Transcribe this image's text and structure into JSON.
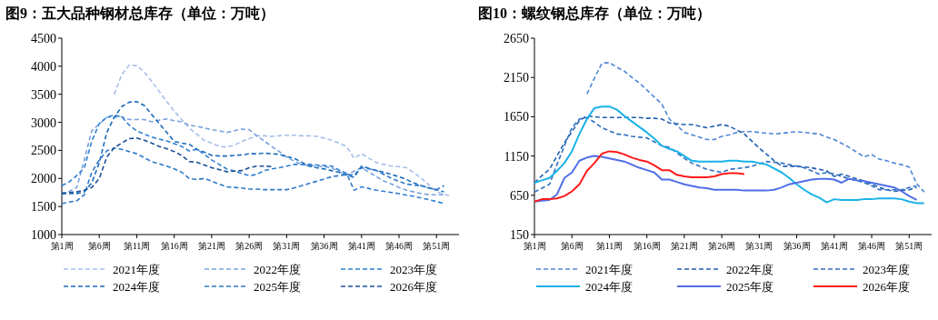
{
  "chart_data": [
    {
      "type": "line",
      "title": "图9：五大品种钢材总库存（单位：万吨）",
      "categories": [
        "第1周",
        null,
        null,
        null,
        null,
        "第6周",
        null,
        null,
        null,
        null,
        "第11周",
        null,
        null,
        null,
        null,
        "第16周",
        null,
        null,
        null,
        null,
        "第21周",
        null,
        null,
        null,
        null,
        "第26周",
        null,
        null,
        null,
        null,
        "第31周",
        null,
        null,
        null,
        null,
        "第36周",
        null,
        null,
        null,
        null,
        "第41周",
        null,
        null,
        null,
        null,
        "第46周",
        null,
        null,
        null,
        null,
        "第51周",
        null,
        null
      ],
      "ylim": [
        1000,
        4500
      ],
      "yticks": [
        1000,
        1500,
        2000,
        2500,
        3000,
        3500,
        4000,
        4500
      ],
      "legend": "bottom",
      "marker": "none",
      "series": [
        {
          "name": "2021年度",
          "color": "#a6bfe9",
          "line_style": "dashed",
          "values": [
            null,
            null,
            null,
            null,
            null,
            null,
            null,
            3500,
            3850,
            4020,
            4010,
            3900,
            3730,
            3550,
            3370,
            3200,
            3050,
            2900,
            2790,
            2680,
            2630,
            2570,
            2560,
            2590,
            2660,
            2710,
            2760,
            2760,
            2750,
            2760,
            2770,
            2770,
            2760,
            2760,
            2750,
            2720,
            2680,
            2630,
            2570,
            2360,
            2440,
            2360,
            2280,
            2250,
            2220,
            2210,
            2190,
            2100,
            2000,
            1880,
            1760,
            1720,
            1680
          ]
        },
        {
          "name": "2022年度",
          "color": "#7ba2de",
          "line_style": "dashed",
          "values": [
            1710,
            1770,
            1840,
            2330,
            2850,
            2970,
            3090,
            3090,
            3100,
            3050,
            3050,
            3050,
            3010,
            3040,
            3060,
            3030,
            3010,
            2950,
            2930,
            2900,
            2870,
            2850,
            2820,
            2850,
            2880,
            2870,
            2760,
            2670,
            2570,
            2480,
            2380,
            2310,
            2250,
            2230,
            2220,
            2210,
            2190,
            2120,
            2060,
            2130,
            2190,
            2110,
            2030,
            1950,
            1900,
            1840,
            1790,
            1760,
            1730,
            1710,
            1710,
            1710,
            null
          ]
        },
        {
          "name": "2023年度",
          "color": "#2f7fd0",
          "line_style": "dashed",
          "values": [
            1870,
            1940,
            2050,
            2190,
            2660,
            2980,
            3090,
            3130,
            3100,
            2950,
            2850,
            2790,
            2740,
            2700,
            2670,
            2620,
            2570,
            2490,
            2520,
            2430,
            2330,
            2250,
            2170,
            2130,
            2090,
            2050,
            2070,
            2140,
            2170,
            2190,
            2220,
            2250,
            2250,
            2250,
            2240,
            2230,
            2220,
            2150,
            2090,
            1790,
            1850,
            1820,
            1790,
            1770,
            1750,
            1730,
            1700,
            1680,
            1650,
            1620,
            1590,
            1550,
            null
          ]
        },
        {
          "name": "2024年度",
          "color": "#1a6bbb",
          "line_style": "dashed",
          "values": [
            1730,
            1730,
            1730,
            1760,
            1920,
            2280,
            2820,
            3090,
            3280,
            3360,
            3370,
            3300,
            3140,
            2980,
            2820,
            2660,
            2630,
            2610,
            2520,
            2470,
            2410,
            2400,
            2400,
            2410,
            2420,
            2440,
            2440,
            2450,
            2440,
            2430,
            2390,
            2360,
            2290,
            2220,
            2190,
            2170,
            2140,
            2110,
            2060,
            2020,
            2220,
            2180,
            2140,
            2110,
            2070,
            2030,
            1980,
            1920,
            1870,
            1830,
            1800,
            1760,
            null
          ]
        },
        {
          "name": "2025年度",
          "color": "#2c78c8",
          "line_style": "dashed",
          "values": [
            1550,
            1580,
            1600,
            1710,
            2110,
            2330,
            2490,
            2540,
            2520,
            2480,
            2440,
            2370,
            2300,
            2260,
            2220,
            2170,
            2110,
            2000,
            1980,
            2000,
            1950,
            1900,
            1850,
            1840,
            1830,
            1810,
            1810,
            1800,
            1800,
            1800,
            1800,
            1830,
            1870,
            1910,
            1950,
            1990,
            2030,
            2050,
            2070,
            2060,
            2190,
            2170,
            2140,
            2070,
            2000,
            1950,
            1900,
            1880,
            1870,
            1830,
            1800,
            1870,
            null
          ]
        },
        {
          "name": "2026年度",
          "color": "#1b4f96",
          "line_style": "dashed",
          "values": [
            1740,
            1750,
            1760,
            1790,
            1840,
            2000,
            2380,
            2550,
            2630,
            2710,
            2720,
            2680,
            2630,
            2570,
            2530,
            2480,
            2410,
            2300,
            2290,
            2240,
            2190,
            2160,
            2120,
            2130,
            2140,
            2190,
            2220,
            2220,
            2210,
            null,
            null,
            null,
            null,
            null,
            null,
            null,
            null,
            null,
            null,
            null,
            null,
            null,
            null,
            null,
            null,
            null,
            null,
            null,
            null,
            null,
            null,
            null,
            null
          ]
        }
      ]
    },
    {
      "type": "line",
      "title": "图10：螺纹钢总库存（单位：万吨）",
      "categories": [
        "第1周",
        null,
        null,
        null,
        null,
        "第6周",
        null,
        null,
        null,
        null,
        "第11周",
        null,
        null,
        null,
        null,
        "第16周",
        null,
        null,
        null,
        null,
        "第21周",
        null,
        null,
        null,
        null,
        "第26周",
        null,
        null,
        null,
        null,
        "第31周",
        null,
        null,
        null,
        null,
        "第36周",
        null,
        null,
        null,
        null,
        "第41周",
        null,
        null,
        null,
        null,
        "第46周",
        null,
        null,
        null,
        null,
        "第51周",
        null,
        null
      ],
      "ylim": [
        150,
        2650
      ],
      "yticks": [
        150,
        650,
        1150,
        1650,
        2150,
        2650
      ],
      "legend": "bottom",
      "marker": "none",
      "series": [
        {
          "name": "2021年度",
          "color": "#4f86d6",
          "line_style": "dashed",
          "values": [
            null,
            null,
            null,
            null,
            null,
            null,
            null,
            1940,
            2140,
            2330,
            2340,
            2280,
            2230,
            2150,
            2080,
            1990,
            1900,
            1810,
            1620,
            1540,
            1450,
            1420,
            1390,
            1360,
            1360,
            1400,
            1420,
            1450,
            1460,
            1460,
            1450,
            1440,
            1430,
            1440,
            1450,
            1460,
            1450,
            1440,
            1430,
            1390,
            1360,
            1310,
            1260,
            1200,
            1140,
            1170,
            1110,
            1090,
            1060,
            1040,
            1010,
            800,
            690
          ]
        },
        {
          "name": "2022年度",
          "color": "#1f5fb0",
          "line_style": "dashed",
          "values": [
            810,
            900,
            980,
            1150,
            1320,
            1460,
            1600,
            1660,
            1650,
            1640,
            1640,
            1640,
            1640,
            1640,
            1640,
            1630,
            1630,
            1620,
            1570,
            1560,
            1550,
            1550,
            1530,
            1510,
            1530,
            1550,
            1530,
            1480,
            1430,
            1340,
            1250,
            1170,
            1090,
            1020,
            1020,
            1020,
            1010,
            1000,
            980,
            960,
            890,
            920,
            890,
            860,
            830,
            790,
            750,
            720,
            700,
            710,
            720,
            750,
            null
          ]
        },
        {
          "name": "2023年度",
          "color": "#2e6fc0",
          "line_style": "dashed",
          "values": [
            690,
            740,
            790,
            1040,
            1280,
            1510,
            1620,
            1640,
            1580,
            1510,
            1470,
            1430,
            1420,
            1400,
            1390,
            1380,
            1330,
            1280,
            1260,
            1190,
            1120,
            1060,
            1020,
            980,
            960,
            940,
            980,
            990,
            1000,
            1020,
            1050,
            1080,
            1070,
            1060,
            1040,
            1020,
            1000,
            960,
            920,
            940,
            920,
            890,
            860,
            840,
            810,
            770,
            720,
            720,
            720,
            720,
            750,
            770,
            null
          ]
        },
        {
          "name": "2024年度",
          "color": "#19b2e8",
          "line_style": "solid",
          "values": [
            810,
            840,
            870,
            960,
            1060,
            1210,
            1430,
            1620,
            1760,
            1780,
            1780,
            1740,
            1660,
            1590,
            1520,
            1450,
            1370,
            1280,
            1240,
            1210,
            1150,
            1090,
            1080,
            1080,
            1080,
            1080,
            1090,
            1090,
            1080,
            1080,
            1060,
            1040,
            990,
            940,
            870,
            790,
            720,
            660,
            620,
            560,
            600,
            590,
            590,
            590,
            600,
            600,
            610,
            610,
            610,
            600,
            570,
            550,
            550
          ]
        },
        {
          "name": "2025年度",
          "color": "#4f6fe8",
          "line_style": "solid",
          "values": [
            570,
            580,
            590,
            660,
            870,
            940,
            1090,
            1130,
            1150,
            1140,
            1120,
            1100,
            1080,
            1040,
            1000,
            970,
            940,
            850,
            850,
            820,
            790,
            770,
            750,
            740,
            720,
            720,
            720,
            720,
            710,
            710,
            710,
            710,
            720,
            750,
            790,
            810,
            830,
            850,
            860,
            860,
            850,
            810,
            860,
            840,
            830,
            810,
            790,
            770,
            750,
            700,
            640,
            590,
            null
          ]
        },
        {
          "name": "2026年度",
          "color": "#ff1a1a",
          "line_style": "solid",
          "values": [
            570,
            600,
            600,
            610,
            640,
            700,
            790,
            960,
            1060,
            1180,
            1210,
            1200,
            1170,
            1130,
            1100,
            1080,
            1030,
            970,
            970,
            910,
            890,
            880,
            880,
            880,
            890,
            920,
            930,
            930,
            920,
            null,
            null,
            null,
            null,
            null,
            null,
            null,
            null,
            null,
            null,
            null,
            null,
            null,
            null,
            null,
            null,
            null,
            null,
            null,
            null,
            null,
            null,
            null,
            null
          ]
        }
      ]
    }
  ]
}
